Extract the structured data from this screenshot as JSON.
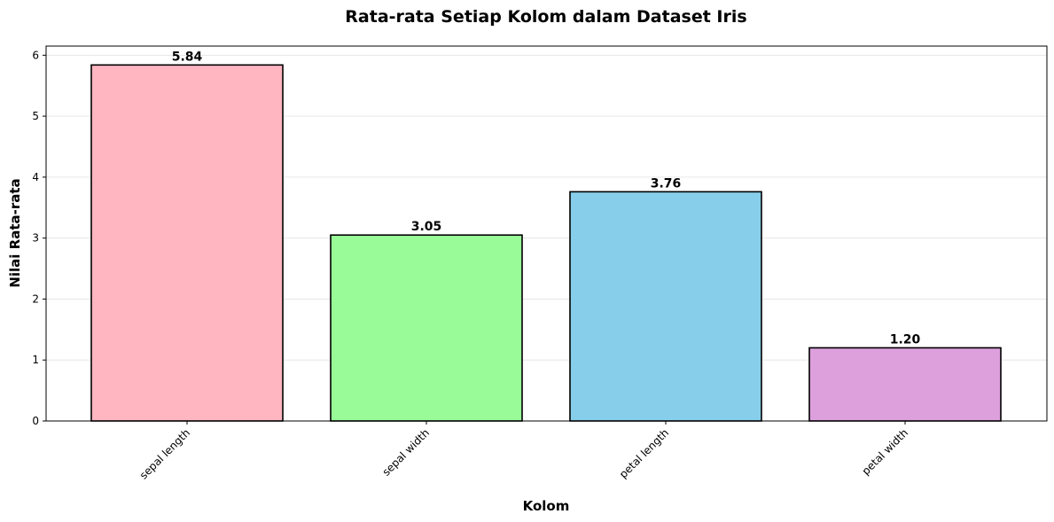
{
  "chart_data": {
    "type": "bar",
    "title": "Rata-rata Setiap Kolom dalam Dataset Iris",
    "xlabel": "Kolom",
    "ylabel": "Nilai Rata-rata",
    "categories": [
      "sepal length",
      "sepal width",
      "petal length",
      "petal width"
    ],
    "values": [
      5.84,
      3.05,
      3.76,
      1.2
    ],
    "data_labels": [
      "5.84",
      "3.05",
      "3.76",
      "1.20"
    ],
    "colors": [
      "#ffb6c1",
      "#98fb98",
      "#87ceeb",
      "#dda0dd"
    ],
    "edge_color": "#000000",
    "ylim": [
      0,
      6.15
    ],
    "yticks": [
      0,
      1,
      2,
      3,
      4,
      5,
      6
    ],
    "ytick_labels": [
      "0",
      "1",
      "2",
      "3",
      "4",
      "5",
      "6"
    ],
    "grid": "y-axis only, light gray",
    "legend": "none"
  }
}
